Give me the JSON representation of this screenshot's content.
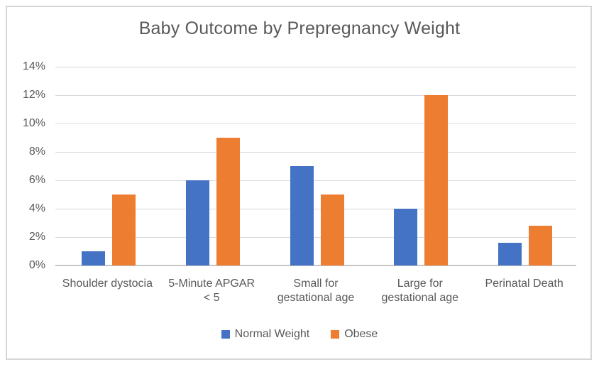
{
  "chart_data": {
    "type": "bar",
    "title": "Baby Outcome by Prepregnancy Weight",
    "categories": [
      "Shoulder dystocia",
      "5-Minute APGAR < 5",
      "Small for gestational age",
      "Large for gestational age",
      "Perinatal Death"
    ],
    "series": [
      {
        "name": "Normal Weight",
        "color": "#4472C4",
        "values": [
          1,
          6,
          7,
          4,
          1.6
        ]
      },
      {
        "name": "Obese",
        "color": "#ED7D31",
        "values": [
          5,
          9,
          5,
          12,
          2.8
        ]
      }
    ],
    "xlabel": "",
    "ylabel": "",
    "ylim": [
      0,
      14
    ],
    "ytick_step": 2,
    "yticks": [
      "0%",
      "2%",
      "4%",
      "6%",
      "8%",
      "10%",
      "12%",
      "14%"
    ],
    "grid": true,
    "legend_position": "bottom",
    "colors": {
      "text": "#595959",
      "gridline": "#D9D9D9",
      "axis_line": "#C6C6C6",
      "frame_border": "#D6D6D6",
      "background": "#FFFFFF"
    }
  }
}
